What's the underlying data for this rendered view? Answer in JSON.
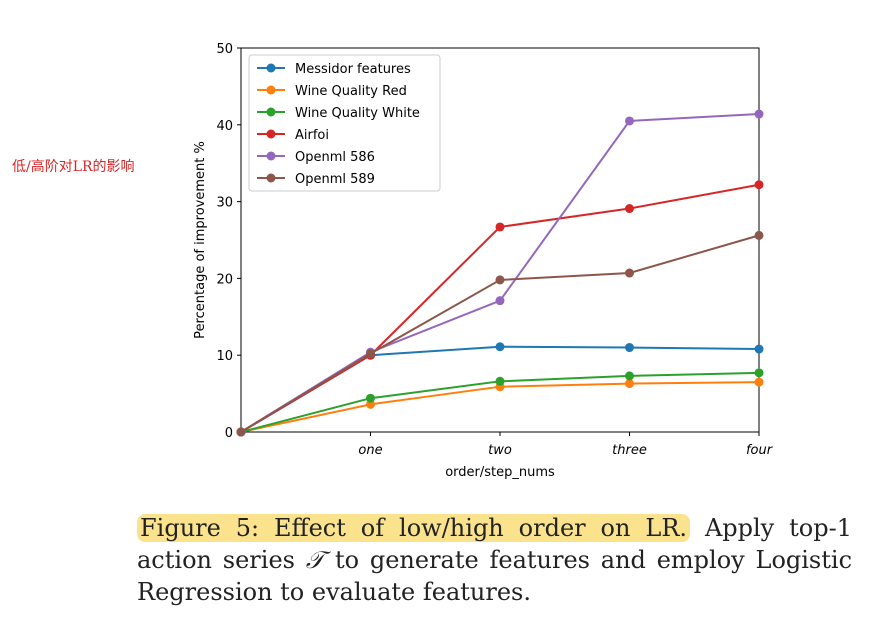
{
  "annotation": "低/高阶对LR的影响",
  "chart_data": {
    "type": "line",
    "categories": [
      "",
      "one",
      "two",
      "three",
      "four"
    ],
    "ylabel": "Percentage of improvement %",
    "xlabel": "order/step_nums",
    "ylim": [
      0,
      50
    ],
    "yticks": [
      0,
      10,
      20,
      30,
      40,
      50
    ],
    "legend_position": "upper-left",
    "series": [
      {
        "name": "Messidor features",
        "color": "#1f77b4",
        "values": [
          0,
          10.0,
          11.1,
          11.0,
          10.8
        ]
      },
      {
        "name": "Wine Quality Red",
        "color": "#ff7f0e",
        "values": [
          0,
          3.6,
          5.9,
          6.3,
          6.5
        ]
      },
      {
        "name": "Wine Quality White",
        "color": "#2ca02c",
        "values": [
          0,
          4.4,
          6.6,
          7.3,
          7.7
        ]
      },
      {
        "name": "Airfoi",
        "color": "#d62728",
        "values": [
          0,
          10.0,
          26.7,
          29.1,
          32.2
        ]
      },
      {
        "name": "Openml 586",
        "color": "#9467bd",
        "values": [
          0,
          10.4,
          17.1,
          40.5,
          41.4
        ]
      },
      {
        "name": "Openml 589",
        "color": "#8c564b",
        "values": [
          0,
          10.2,
          19.8,
          20.7,
          25.6
        ]
      }
    ]
  },
  "caption": {
    "highlight": "Figure 5: Effect of low/high order on LR.",
    "rest_before": " Apply top-1 action series ",
    "symbol": "𝒯",
    "rest_after": " to generate features and employ Logistic Regression to evaluate features."
  }
}
